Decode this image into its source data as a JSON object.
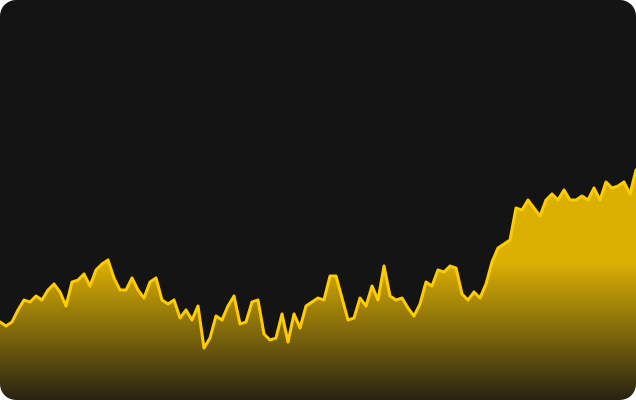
{
  "chart_data": {
    "type": "area",
    "color": "#ffcc00",
    "background": "#141414",
    "ylim": [
      0,
      100
    ],
    "values": [
      19.5,
      18.5,
      19.5,
      22.5,
      25,
      24.5,
      26,
      25,
      27.5,
      29,
      27,
      23.5,
      29.5,
      30,
      31.5,
      28.5,
      32.5,
      34,
      35,
      30.5,
      27.5,
      27.5,
      30.5,
      27.5,
      25.5,
      29.5,
      30.5,
      25,
      24,
      25,
      20.5,
      22.5,
      20,
      23.5,
      13,
      15.5,
      21,
      20,
      23.5,
      26,
      19,
      19.5,
      24.5,
      25,
      16.5,
      15,
      15.5,
      21.5,
      14.5,
      21.5,
      18,
      23.5,
      24.5,
      25.5,
      25,
      31,
      31,
      25.5,
      20,
      20.5,
      25.5,
      23.5,
      28.5,
      25,
      33.5,
      26,
      25,
      25.5,
      23,
      21,
      24,
      29.5,
      28.5,
      32.5,
      32,
      33.5,
      33,
      26.5,
      25,
      27,
      25.5,
      29,
      34.5,
      38,
      39,
      40,
      48,
      47.5,
      50,
      48,
      46,
      50,
      51.5,
      50,
      52.5,
      50,
      50,
      51,
      50,
      53,
      50,
      54.5,
      53,
      53.5,
      54.5,
      51.5,
      57.5
    ]
  }
}
